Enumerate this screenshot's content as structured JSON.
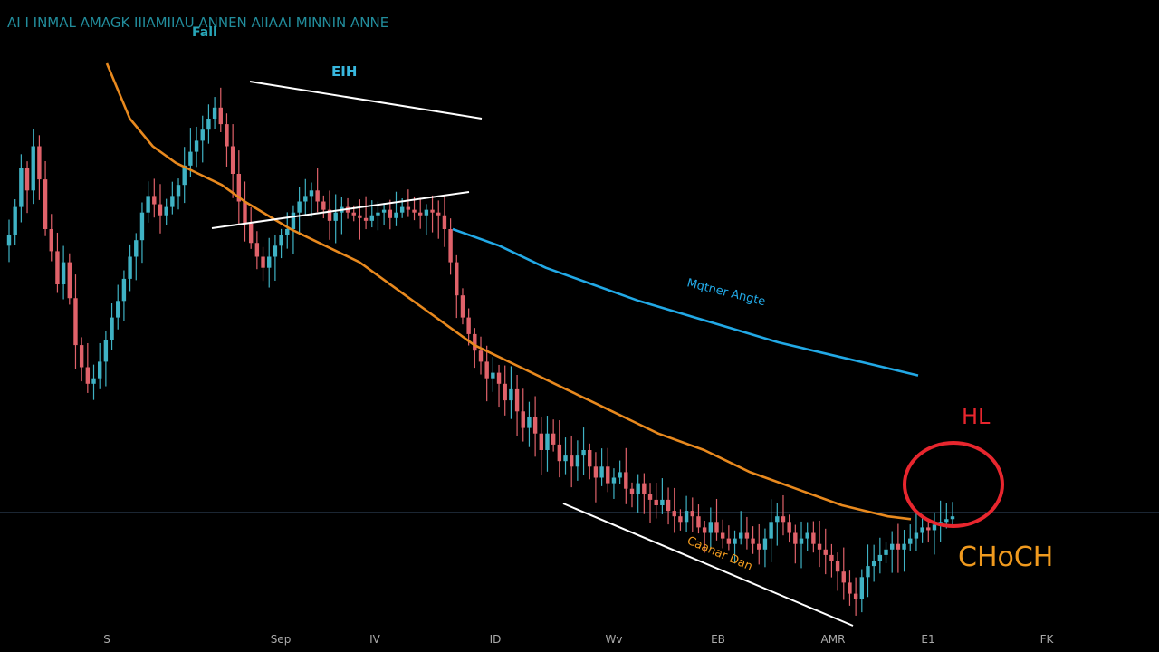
{
  "chart_data": {
    "type": "candlestick",
    "title": "",
    "header_text": "AI I INMAL AMAGK IIIAMIIAU ANNEN AIIAAI MINNIN ANNE",
    "header_sub": "Fall",
    "x_tick_labels": [
      "S",
      "Sep",
      "IV",
      "ID",
      "Wv",
      "EB",
      "AMR",
      "E1",
      "FK"
    ],
    "colors": {
      "background": "#000000",
      "up": "#3fb2c4",
      "down": "#e0626a",
      "ema_fast": "#e8891e",
      "ema_slow": "#22a9e6",
      "trendline": "#ffffff",
      "hl_marker": "#e8262e",
      "choch": "#f09a1e",
      "header": "#28a6b8",
      "axis_text": "#aaaaaa"
    },
    "series": [
      {
        "name": "Price",
        "close": [
          138,
          148,
          162,
          154,
          170,
          158,
          140,
          132,
          120,
          128,
          115,
          98,
          90,
          84,
          86,
          92,
          100,
          108,
          114,
          122,
          130,
          136,
          146,
          152,
          149,
          145,
          148,
          152,
          156,
          163,
          168,
          172,
          176,
          180,
          184,
          178,
          170,
          160,
          150,
          142,
          135,
          130,
          126,
          130,
          134,
          138,
          140,
          146,
          150,
          152,
          154,
          150,
          147,
          143,
          146,
          148,
          146,
          145,
          144,
          143,
          145,
          146,
          147,
          144,
          146,
          148,
          147,
          146,
          145,
          147,
          146,
          145,
          140,
          128,
          116,
          108,
          102,
          96,
          92,
          86,
          88,
          84,
          78,
          82,
          74,
          68,
          72,
          66,
          60,
          66,
          62,
          56,
          58,
          54,
          58,
          60,
          54,
          50,
          54,
          48,
          50,
          52,
          46,
          44,
          48,
          44,
          42,
          40,
          42,
          38,
          36,
          34,
          38,
          36,
          32,
          30,
          34,
          30,
          28,
          26,
          28,
          30,
          28,
          26,
          24,
          28,
          34,
          36,
          34,
          30,
          26,
          28,
          30,
          26,
          24,
          22,
          20,
          16,
          12,
          8,
          6,
          14,
          18,
          20,
          22,
          24,
          26,
          24,
          26,
          28,
          30,
          32,
          31,
          33,
          34,
          35,
          36
        ]
      }
    ],
    "ema_fast": {
      "name": "",
      "values": [
        200,
        180,
        170,
        164,
        160,
        156,
        150,
        145,
        140,
        136,
        132,
        128,
        122,
        116,
        110,
        104,
        98,
        94,
        90,
        86,
        82,
        78,
        74,
        70,
        66,
        63,
        60,
        56,
        52,
        49,
        46,
        43,
        40,
        38,
        36,
        35
      ]
    },
    "ema_slow": {
      "name": "",
      "values": [
        140,
        134,
        126,
        120,
        114,
        109,
        104,
        99,
        95,
        91,
        87
      ]
    },
    "annotations": {
      "wedge_label": "EIH",
      "ema_label": "Mqtner Angte",
      "channel_label": "Caanar Dan",
      "hl_label": "HL",
      "choch_label": "CHoCH"
    },
    "grid": false,
    "legend": "none"
  }
}
